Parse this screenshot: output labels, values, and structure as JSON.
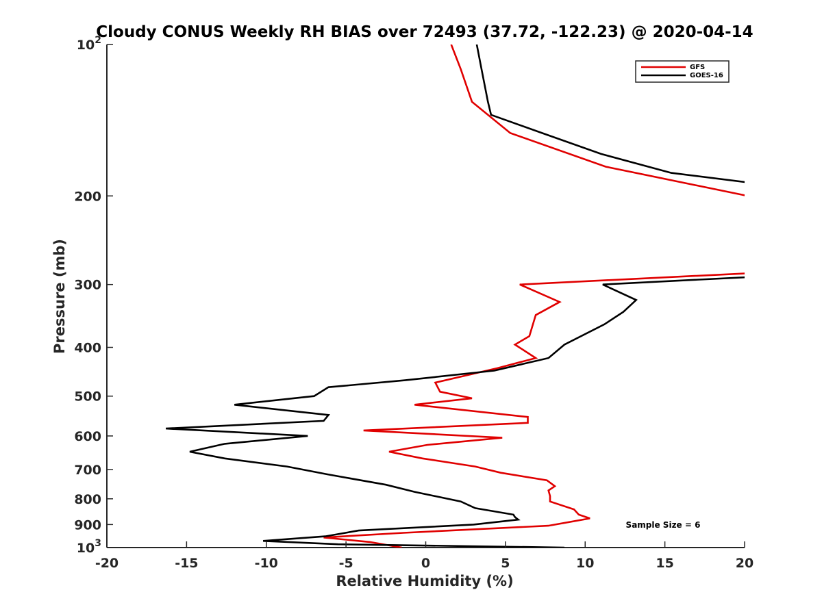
{
  "chart_data": {
    "type": "line",
    "title": "Cloudy CONUS Weekly RH BIAS over 72493 (37.72, -122.23) @ 2020-04-14",
    "xlabel": "Relative Humidity (%)",
    "ylabel": "Pressure (mb)",
    "xlim": [
      -20,
      20
    ],
    "ylim": [
      100,
      1000
    ],
    "y_scale": "log",
    "y_reversed": true,
    "x_ticks": [
      {
        "value": -20,
        "label": "-20"
      },
      {
        "value": -15,
        "label": "-15"
      },
      {
        "value": -10,
        "label": "-10"
      },
      {
        "value": -5,
        "label": "-5"
      },
      {
        "value": 0,
        "label": "0"
      },
      {
        "value": 5,
        "label": "5"
      },
      {
        "value": 10,
        "label": "10"
      },
      {
        "value": 15,
        "label": "15"
      },
      {
        "value": 20,
        "label": "20"
      }
    ],
    "y_ticks": [
      {
        "value": 100,
        "base": "10",
        "exp": "2"
      },
      {
        "value": 200,
        "label": "200"
      },
      {
        "value": 300,
        "label": "300"
      },
      {
        "value": 400,
        "label": "400"
      },
      {
        "value": 500,
        "label": "500"
      },
      {
        "value": 600,
        "label": "600"
      },
      {
        "value": 700,
        "label": "700"
      },
      {
        "value": 800,
        "label": "800"
      },
      {
        "value": 900,
        "label": "900"
      },
      {
        "value": 1000,
        "base": "10",
        "exp": "3"
      }
    ],
    "grid": false,
    "legend_position": "top-right",
    "annotation": "Sample Size = 6",
    "series": [
      {
        "name": "GFS",
        "color": "#e00000",
        "segments": [
          [
            [
              1.6,
              100
            ],
            [
              2.2,
              112
            ],
            [
              2.9,
              130
            ],
            [
              5.3,
              150
            ],
            [
              11.3,
              175
            ],
            [
              20.2,
              200
            ]
          ],
          [
            [
              20.2,
              285
            ],
            [
              5.9,
              300
            ],
            [
              8.4,
              325
            ],
            [
              6.9,
              345
            ],
            [
              6.5,
              380
            ],
            [
              5.6,
              395
            ],
            [
              6.9,
              420
            ],
            [
              4.5,
              440
            ],
            [
              0.6,
              470
            ],
            [
              0.9,
              490
            ],
            [
              2.9,
              505
            ],
            [
              -0.7,
              520
            ],
            [
              6.4,
              550
            ],
            [
              6.4,
              565
            ],
            [
              -3.9,
              585
            ],
            [
              4.8,
              605
            ],
            [
              0.1,
              625
            ],
            [
              -2.3,
              645
            ],
            [
              -0.2,
              665
            ],
            [
              3.1,
              690
            ],
            [
              4.7,
              710
            ],
            [
              7.6,
              735
            ],
            [
              8.1,
              755
            ],
            [
              7.7,
              770
            ],
            [
              7.8,
              790
            ],
            [
              7.8,
              810
            ],
            [
              9.3,
              840
            ],
            [
              9.6,
              860
            ],
            [
              10.3,
              875
            ],
            [
              7.7,
              905
            ],
            [
              -1.4,
              935
            ],
            [
              -6.4,
              955
            ],
            [
              -3.5,
              975
            ],
            [
              -1.5,
              1000
            ]
          ]
        ]
      },
      {
        "name": "GOES-16",
        "color": "#000000",
        "segments": [
          [
            [
              3.2,
              100
            ],
            [
              3.5,
              112
            ],
            [
              3.9,
              130
            ],
            [
              4.1,
              138
            ],
            [
              7.3,
              150
            ],
            [
              11.0,
              165
            ],
            [
              15.4,
              180
            ],
            [
              20.2,
              188
            ]
          ],
          [
            [
              20.2,
              290
            ],
            [
              11.1,
              300
            ],
            [
              13.2,
              322
            ],
            [
              12.4,
              340
            ],
            [
              11.2,
              360
            ],
            [
              8.7,
              395
            ],
            [
              7.7,
              420
            ],
            [
              4.3,
              445
            ],
            [
              -1.3,
              465
            ],
            [
              -6.1,
              480
            ],
            [
              -7.0,
              500
            ],
            [
              -12.0,
              520
            ],
            [
              -6.1,
              545
            ],
            [
              -6.4,
              560
            ],
            [
              -16.3,
              580
            ],
            [
              -7.4,
              600
            ],
            [
              -12.6,
              622
            ],
            [
              -14.8,
              645
            ],
            [
              -12.6,
              665
            ],
            [
              -8.7,
              690
            ],
            [
              -6.2,
              715
            ],
            [
              -2.5,
              750
            ],
            [
              -0.7,
              775
            ],
            [
              2.2,
              810
            ],
            [
              3.1,
              835
            ],
            [
              5.5,
              860
            ],
            [
              5.6,
              870
            ],
            [
              5.8,
              880
            ],
            [
              3.0,
              900
            ],
            [
              -4.2,
              925
            ],
            [
              -6.3,
              950
            ],
            [
              -10.2,
              970
            ],
            [
              -5.5,
              985
            ],
            [
              8.7,
              1000
            ]
          ]
        ]
      }
    ]
  }
}
